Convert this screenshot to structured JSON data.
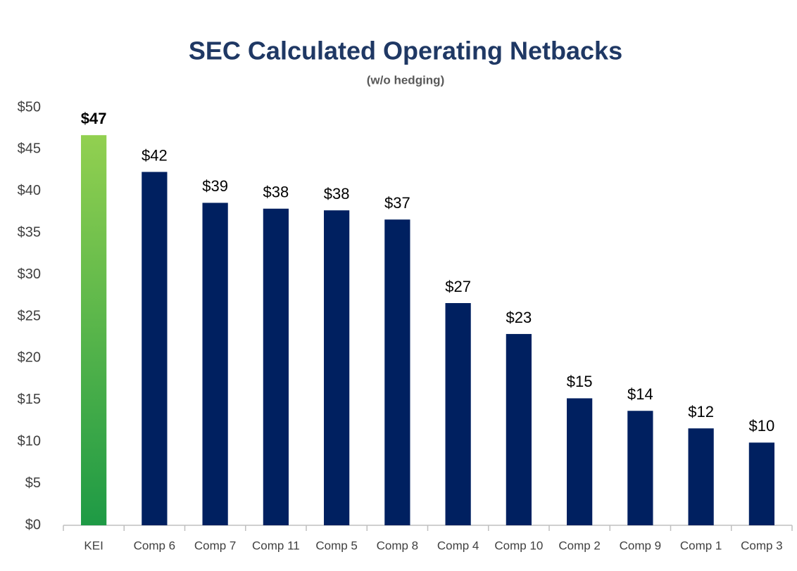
{
  "chart_data": {
    "type": "bar",
    "title": "SEC Calculated Operating Netbacks",
    "subtitle": "(w/o hedging)",
    "categories": [
      "KEI",
      "Comp 6",
      "Comp 7",
      "Comp 11",
      "Comp 5",
      "Comp 8",
      "Comp 4",
      "Comp 10",
      "Comp 2",
      "Comp 9",
      "Comp 1",
      "Comp 3"
    ],
    "values": [
      46.7,
      42.3,
      38.6,
      37.9,
      37.7,
      36.6,
      26.6,
      22.9,
      15.2,
      13.7,
      11.6,
      9.9
    ],
    "value_labels": [
      "$47",
      "$42",
      "$39",
      "$38",
      "$38",
      "$37",
      "$27",
      "$23",
      "$15",
      "$14",
      "$12",
      "$10"
    ],
    "colors": [
      {
        "from": "#92d050",
        "to": "#1e9a45"
      },
      "#002060",
      "#002060",
      "#002060",
      "#002060",
      "#002060",
      "#002060",
      "#002060",
      "#002060",
      "#002060",
      "#002060",
      "#002060"
    ],
    "ylim": [
      0,
      50
    ],
    "yticks": [
      {
        "value": 0,
        "label": "$0"
      },
      {
        "value": 5,
        "label": "$5"
      },
      {
        "value": 10,
        "label": "$10"
      },
      {
        "value": 15,
        "label": "$15"
      },
      {
        "value": 20,
        "label": "$20"
      },
      {
        "value": 25,
        "label": "$25"
      },
      {
        "value": 30,
        "label": "$30"
      },
      {
        "value": 35,
        "label": "$35"
      },
      {
        "value": 40,
        "label": "$40"
      },
      {
        "value": 45,
        "label": "$45"
      },
      {
        "value": 50,
        "label": "$50"
      }
    ],
    "grid": false
  }
}
